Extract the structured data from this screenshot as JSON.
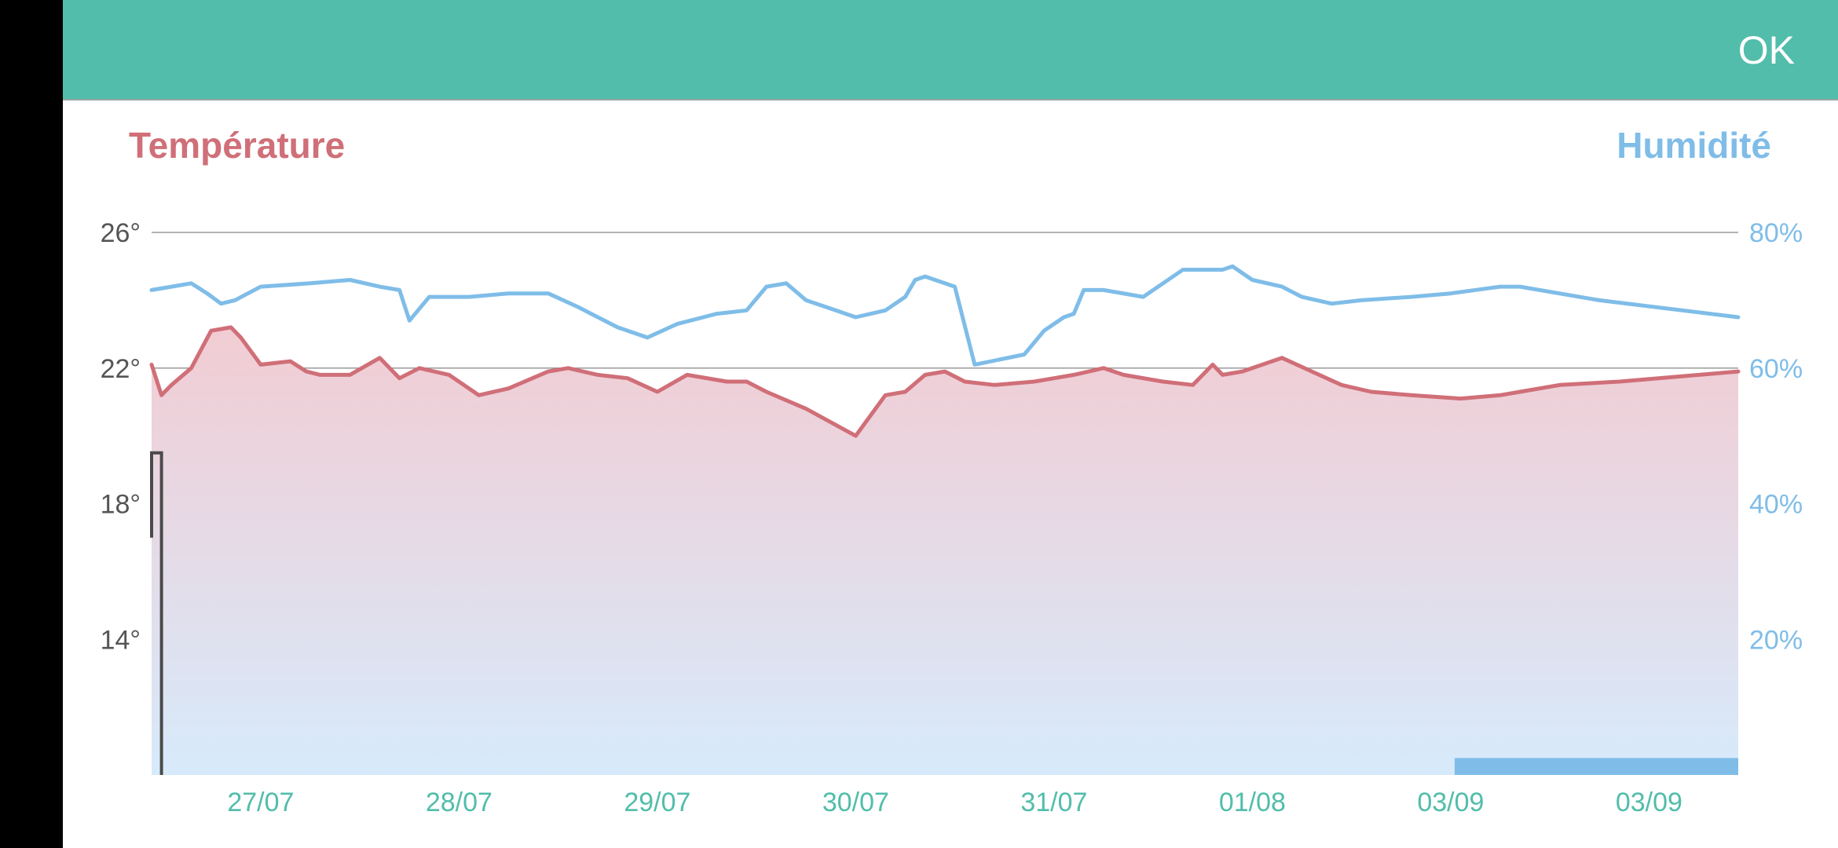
{
  "app_bar": {
    "ok_label": "OK"
  },
  "colors": {
    "app_bar": "#52bdaa",
    "temperature": "#d06f78",
    "humidity": "#7fbde8",
    "date_labels": "#52bdaa",
    "axis_labels": "#555555",
    "grid": "#9a9a9a",
    "fill_top": "#f2ccd3",
    "fill_bottom": "#d7eafb"
  },
  "chart_data": {
    "type": "line",
    "title": "",
    "left_axis_title": "Température",
    "right_axis_title": "Humidité",
    "left_ticks": [
      {
        "value": 26,
        "label": "26°"
      },
      {
        "value": 22,
        "label": "22°"
      },
      {
        "value": 18,
        "label": "18°"
      },
      {
        "value": 14,
        "label": "14°"
      }
    ],
    "right_ticks": [
      {
        "value": 80,
        "label": "80%"
      },
      {
        "value": 60,
        "label": "60%"
      },
      {
        "value": 40,
        "label": "40%"
      },
      {
        "value": 20,
        "label": "20%"
      }
    ],
    "ylim_left": [
      10,
      26
    ],
    "ylim_right": [
      0,
      80
    ],
    "xlim": [
      26.2,
      34.2
    ],
    "x_ticks": [
      {
        "value": 26.75,
        "label": "27/07"
      },
      {
        "value": 27.75,
        "label": "28/07"
      },
      {
        "value": 28.75,
        "label": "29/07"
      },
      {
        "value": 29.75,
        "label": "30/07"
      },
      {
        "value": 30.75,
        "label": "31/07"
      },
      {
        "value": 31.75,
        "label": "01/08"
      },
      {
        "value": 32.75,
        "label": "03/09"
      },
      {
        "value": 33.75,
        "label": "03/09"
      }
    ],
    "grid": true,
    "series": [
      {
        "name": "Température",
        "axis": "left",
        "fill": true,
        "x": [
          26.2,
          26.25,
          26.3,
          26.4,
          26.5,
          26.6,
          26.65,
          26.75,
          26.9,
          26.98,
          27.05,
          27.2,
          27.35,
          27.45,
          27.55,
          27.7,
          27.85,
          28.0,
          28.2,
          28.3,
          28.45,
          28.6,
          28.75,
          28.9,
          29.1,
          29.2,
          29.3,
          29.5,
          29.75,
          29.9,
          30.0,
          30.1,
          30.2,
          30.3,
          30.45,
          30.65,
          30.75,
          30.85,
          31.0,
          31.1,
          31.3,
          31.45,
          31.55,
          31.6,
          31.7,
          31.9,
          32.05,
          32.2,
          32.35,
          32.55,
          32.8,
          33.0,
          33.1,
          33.3,
          33.6,
          34.2
        ],
        "values": [
          22.1,
          21.2,
          21.5,
          22.0,
          23.1,
          23.2,
          22.9,
          22.1,
          22.2,
          21.9,
          21.8,
          21.8,
          22.3,
          21.7,
          22.0,
          21.8,
          21.2,
          21.4,
          21.9,
          22.0,
          21.8,
          21.7,
          21.3,
          21.8,
          21.6,
          21.6,
          21.3,
          20.8,
          20.0,
          21.2,
          21.3,
          21.8,
          21.9,
          21.6,
          21.5,
          21.6,
          21.7,
          21.8,
          22.0,
          21.8,
          21.6,
          21.5,
          22.1,
          21.8,
          21.9,
          22.3,
          21.9,
          21.5,
          21.3,
          21.2,
          21.1,
          21.2,
          21.3,
          21.5,
          21.6,
          21.9
        ]
      },
      {
        "name": "Humidité",
        "axis": "right",
        "fill": false,
        "x": [
          26.2,
          26.3,
          26.4,
          26.48,
          26.55,
          26.62,
          26.75,
          27.0,
          27.2,
          27.35,
          27.45,
          27.5,
          27.6,
          27.8,
          28.0,
          28.2,
          28.35,
          28.45,
          28.55,
          28.7,
          28.85,
          29.05,
          29.2,
          29.3,
          29.4,
          29.5,
          29.65,
          29.75,
          29.9,
          29.95,
          30.0,
          30.05,
          30.1,
          30.25,
          30.35,
          30.6,
          30.7,
          30.8,
          30.85,
          30.9,
          31.0,
          31.2,
          31.4,
          31.6,
          31.65,
          31.75,
          31.9,
          32.0,
          32.15,
          32.3,
          32.55,
          32.75,
          33.0,
          33.1,
          33.5,
          34.2
        ],
        "values": [
          71.5,
          72.0,
          72.5,
          71.0,
          69.5,
          70.0,
          72.0,
          72.5,
          73.0,
          72.0,
          71.5,
          67.0,
          70.5,
          70.5,
          71.0,
          71.0,
          69.0,
          67.5,
          66.0,
          64.5,
          66.5,
          68.0,
          68.5,
          72.0,
          72.5,
          70.0,
          68.5,
          67.5,
          68.5,
          69.5,
          70.5,
          73.0,
          73.5,
          72.0,
          60.5,
          62.0,
          65.5,
          67.5,
          68.0,
          71.5,
          71.5,
          70.5,
          74.5,
          74.5,
          75.0,
          73.0,
          72.0,
          70.5,
          69.5,
          70.0,
          70.5,
          71.0,
          72.0,
          72.0,
          70.0,
          67.5
        ]
      }
    ],
    "annotations": [
      {
        "kind": "trace",
        "color": "#4a4a4a",
        "x": [
          26.2,
          26.2,
          26.25,
          26.25,
          26.25
        ],
        "values": [
          17.0,
          19.5,
          19.5,
          12.0,
          10.0
        ]
      },
      {
        "kind": "band",
        "color": "#7fbde8",
        "x0": 32.77,
        "x1": 34.2,
        "height_value": 0.5
      }
    ]
  }
}
